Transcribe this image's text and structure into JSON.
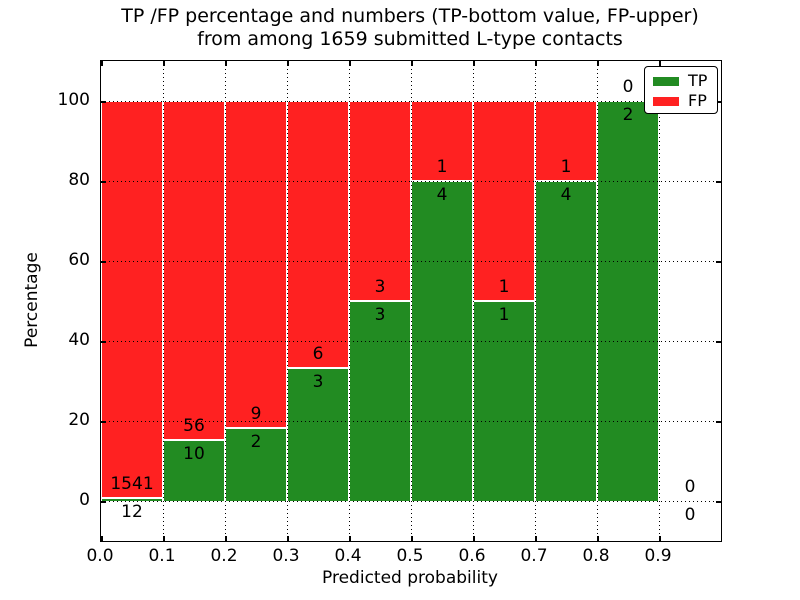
{
  "title": {
    "line1": "TP /FP percentage and numbers (TP-bottom value, FP-upper)",
    "line2": "from among 1659 submitted L-type contacts"
  },
  "axes": {
    "xlabel": "Predicted probability",
    "ylabel": "Percentage",
    "x_tick_labels": [
      "0.0",
      "0.1",
      "0.2",
      "0.3",
      "0.4",
      "0.5",
      "0.6",
      "0.7",
      "0.8",
      "0.9"
    ],
    "y_tick_labels": [
      "0",
      "20",
      "40",
      "60",
      "80",
      "100"
    ]
  },
  "legend": {
    "position": "upper right",
    "items": [
      {
        "label": "TP",
        "color": "#228B22"
      },
      {
        "label": "FP",
        "color": "#FF2121"
      }
    ]
  },
  "chart_data": {
    "type": "bar",
    "subtype": "stacked-normalized-percentage",
    "title": "TP /FP percentage and numbers (TP-bottom value, FP-upper) from among 1659 submitted L-type contacts",
    "xlabel": "Predicted probability",
    "ylabel": "Percentage",
    "xlim": [
      0.0,
      1.0
    ],
    "ylim": [
      -10,
      110
    ],
    "grid": true,
    "legend_position": "upper right",
    "bin_edges": [
      0.0,
      0.1,
      0.2,
      0.3,
      0.4,
      0.5,
      0.6,
      0.7,
      0.8,
      0.9,
      1.0
    ],
    "x_ticks": [
      0.0,
      0.1,
      0.2,
      0.3,
      0.4,
      0.5,
      0.6,
      0.7,
      0.8,
      0.9
    ],
    "y_ticks": [
      0,
      20,
      40,
      60,
      80,
      100
    ],
    "series": [
      {
        "name": "TP",
        "color": "#228B22",
        "counts": [
          12,
          10,
          2,
          3,
          3,
          4,
          1,
          4,
          2,
          0
        ]
      },
      {
        "name": "FP",
        "color": "#FF2121",
        "counts": [
          1541,
          56,
          9,
          6,
          3,
          1,
          1,
          1,
          0,
          0
        ]
      }
    ],
    "tp_percent": [
      0.77,
      15.15,
      18.18,
      33.33,
      50,
      80,
      50,
      80,
      100,
      null
    ],
    "label_note_tp": "TP count shown below segment boundary",
    "label_note_fp": "FP count shown above segment boundary"
  }
}
